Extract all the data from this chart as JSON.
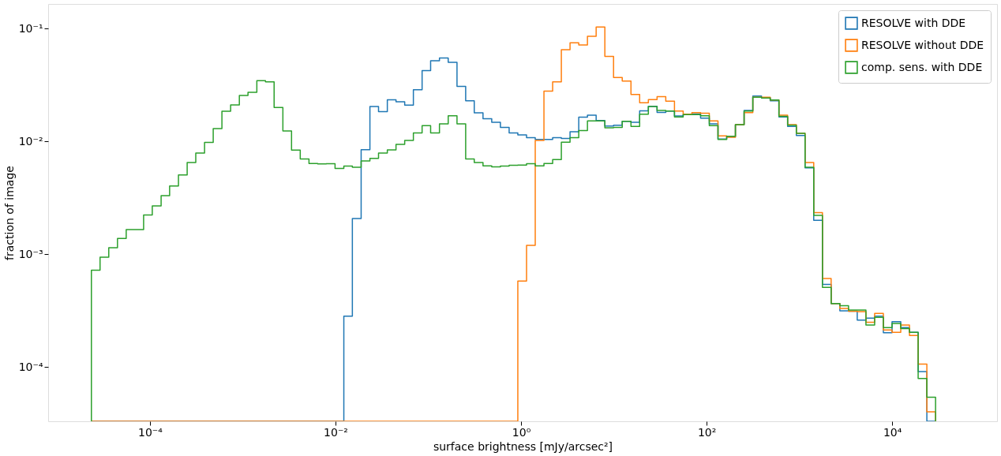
{
  "chart_data": {
    "type": "histogram",
    "xlabel": "surface brightness [mJy/arcsec²]",
    "ylabel": "fraction of image",
    "bins": [
      2.34e-05,
      2.9e-05,
      3.6e-05,
      4.47e-05,
      5.55e-05,
      6.89e-05,
      8.55e-05,
      0.000106,
      0.000132,
      0.000163,
      0.000203,
      0.000252,
      0.000312,
      0.000388,
      0.000481,
      0.000597,
      0.000741,
      0.00092,
      0.00114,
      0.00142,
      0.00176,
      0.00218,
      0.00271,
      0.00336,
      0.00417,
      0.00518,
      0.00642,
      0.00797,
      0.00989,
      0.0123,
      0.0152,
      0.0189,
      0.0235,
      0.0291,
      0.0362,
      0.0449,
      0.0557,
      0.0691,
      0.0858,
      0.106,
      0.132,
      0.164,
      0.204,
      0.253,
      0.313,
      0.389,
      0.483,
      0.599,
      0.744,
      0.923,
      1.146,
      1.422,
      1.765,
      2.19,
      2.718,
      3.373,
      4.186,
      5.195,
      6.448,
      8.002,
      9.93,
      12.32,
      15.3,
      18.98,
      23.56,
      29.24,
      36.29,
      45.04,
      55.9,
      69.37,
      86.1,
      106.9,
      132.6,
      164.6,
      204.3,
      253.5,
      314.7,
      390.5,
      484.7,
      601.5,
      746.5,
      926.5,
      1150,
      1427,
      1771,
      2198,
      2728,
      3385,
      4201,
      5214,
      6471,
      8032,
      9968,
      12370,
      15360,
      19050,
      23650,
      29350
    ],
    "series": [
      {
        "name": "RESOLVE with DDE",
        "color": "#1f77b4",
        "values": [
          null,
          null,
          null,
          null,
          null,
          null,
          null,
          null,
          null,
          null,
          null,
          null,
          null,
          null,
          null,
          null,
          null,
          null,
          null,
          null,
          null,
          null,
          null,
          null,
          null,
          null,
          null,
          null,
          null,
          0.000282,
          0.00207,
          0.00845,
          0.0204,
          0.0184,
          0.0234,
          0.0225,
          0.021,
          0.0287,
          0.0425,
          0.0519,
          0.055,
          0.0502,
          0.0308,
          0.0229,
          0.0179,
          0.0159,
          0.0148,
          0.0133,
          0.0119,
          0.0114,
          0.0108,
          0.0104,
          0.0104,
          0.0108,
          0.0106,
          0.0122,
          0.0164,
          0.0171,
          0.0153,
          0.0137,
          0.0139,
          0.0151,
          0.0148,
          0.0187,
          0.0205,
          0.0181,
          0.0186,
          0.0168,
          0.0173,
          0.0175,
          0.0161,
          0.0143,
          0.0105,
          0.011,
          0.0141,
          0.0188,
          0.0252,
          0.0244,
          0.0229,
          0.0165,
          0.0136,
          0.0113,
          0.00584,
          0.002,
          0.00054,
          0.000365,
          0.000315,
          0.000312,
          0.00026,
          0.000271,
          0.000282,
          0.000201,
          0.000252,
          0.000223,
          0.000203,
          9.1e-05,
          null
        ]
      },
      {
        "name": "RESOLVE without DDE",
        "color": "#ff7f0e",
        "values": [
          null,
          null,
          null,
          null,
          null,
          null,
          null,
          null,
          null,
          null,
          null,
          null,
          null,
          null,
          null,
          null,
          null,
          null,
          null,
          null,
          null,
          null,
          null,
          null,
          null,
          null,
          null,
          null,
          null,
          null,
          null,
          null,
          null,
          null,
          null,
          null,
          null,
          null,
          null,
          null,
          null,
          null,
          null,
          null,
          null,
          null,
          null,
          null,
          null,
          0.000577,
          0.0012,
          0.0102,
          0.0279,
          0.0337,
          0.065,
          0.0748,
          0.0715,
          0.0855,
          0.1035,
          0.0568,
          0.0369,
          0.0343,
          0.0261,
          0.022,
          0.0235,
          0.0249,
          0.0227,
          0.0186,
          0.0174,
          0.018,
          0.0178,
          0.0152,
          0.0112,
          0.0109,
          0.0141,
          0.018,
          0.0246,
          0.0246,
          0.0233,
          0.0171,
          0.0141,
          0.0118,
          0.00649,
          0.00234,
          0.00061,
          0.000365,
          0.00033,
          0.000312,
          0.00031,
          0.000249,
          0.000298,
          0.000213,
          0.000203,
          0.000235,
          0.00019,
          0.000106,
          4e-05
        ]
      },
      {
        "name": "comp. sens. with DDE",
        "color": "#2ca02c",
        "values": [
          0.00072,
          0.00094,
          0.00114,
          0.00138,
          0.00165,
          0.00165,
          0.00223,
          0.00268,
          0.0033,
          0.00403,
          0.00505,
          0.0065,
          0.00787,
          0.0098,
          0.013,
          0.0185,
          0.0211,
          0.0256,
          0.0273,
          0.0345,
          0.0337,
          0.02,
          0.0124,
          0.00836,
          0.00699,
          0.00638,
          0.00632,
          0.00635,
          0.00577,
          0.00604,
          0.0059,
          0.00671,
          0.00706,
          0.00787,
          0.00841,
          0.0094,
          0.0102,
          0.0119,
          0.0138,
          0.0119,
          0.0143,
          0.0169,
          0.0143,
          0.00699,
          0.0065,
          0.00607,
          0.00594,
          0.00604,
          0.00614,
          0.00617,
          0.00635,
          0.00607,
          0.00638,
          0.0069,
          0.00984,
          0.0108,
          0.0125,
          0.0152,
          0.0152,
          0.0132,
          0.0133,
          0.0151,
          0.0136,
          0.0174,
          0.0204,
          0.0188,
          0.0186,
          0.0165,
          0.0173,
          0.0173,
          0.0169,
          0.0138,
          0.0104,
          0.0111,
          0.0141,
          0.0186,
          0.0246,
          0.0242,
          0.0233,
          0.0167,
          0.0139,
          0.0118,
          0.0059,
          0.00221,
          0.000508,
          0.000365,
          0.000349,
          0.00032,
          0.00032,
          0.000235,
          0.000275,
          0.000223,
          0.000243,
          0.000219,
          0.000203,
          7.9e-05,
          5.4e-05
        ]
      }
    ],
    "log": "xy",
    "xlim": [
      8e-06,
      135000.0
    ],
    "xticks": [
      {
        "value": 0.0001,
        "label": "10⁻⁴"
      },
      {
        "value": 0.01,
        "label": "10⁻²"
      },
      {
        "value": 1,
        "label": "10⁰"
      },
      {
        "value": 100,
        "label": "10²"
      },
      {
        "value": 10000,
        "label": "10⁴"
      }
    ],
    "ylim": [
      3.3e-05,
      0.1655
    ],
    "yticks": [
      {
        "value": 0.0001,
        "label": "10⁻⁴"
      },
      {
        "value": 0.001,
        "label": "10⁻³"
      },
      {
        "value": 0.01,
        "label": "10⁻²"
      },
      {
        "value": 0.1,
        "label": "10⁻¹"
      }
    ],
    "legend": "top right",
    "grid": false
  }
}
